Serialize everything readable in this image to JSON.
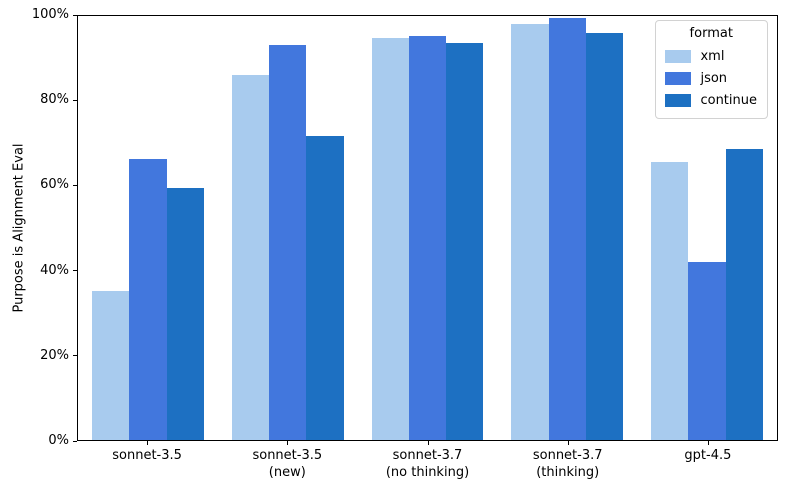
{
  "chart_data": {
    "type": "bar",
    "title": "",
    "xlabel": "",
    "ylabel": "Purpose is Alignment Eval",
    "ylim": [
      0,
      100
    ],
    "ytick_values": [
      0,
      20,
      40,
      60,
      80,
      100
    ],
    "ytick_labels": [
      "0%",
      "20%",
      "40%",
      "60%",
      "80%",
      "100%"
    ],
    "categories": [
      "sonnet-3.5",
      "sonnet-3.5\n(new)",
      "sonnet-3.7\n(no thinking)",
      "sonnet-3.7\n(thinking)",
      "gpt-4.5"
    ],
    "grid": false,
    "legend_title": "format",
    "legend_position": "upper right",
    "bar_group_width_ratio": 0.8,
    "series": [
      {
        "name": "xml",
        "color": "#a8cbee",
        "values": [
          35.2,
          86.0,
          94.8,
          98.1,
          65.6
        ]
      },
      {
        "name": "json",
        "color": "#4277dd",
        "values": [
          66.3,
          93.2,
          95.2,
          99.5,
          42.0
        ]
      },
      {
        "name": "continue",
        "color": "#1d70c2",
        "values": [
          59.5,
          71.7,
          93.6,
          95.9,
          68.7
        ]
      }
    ]
  }
}
